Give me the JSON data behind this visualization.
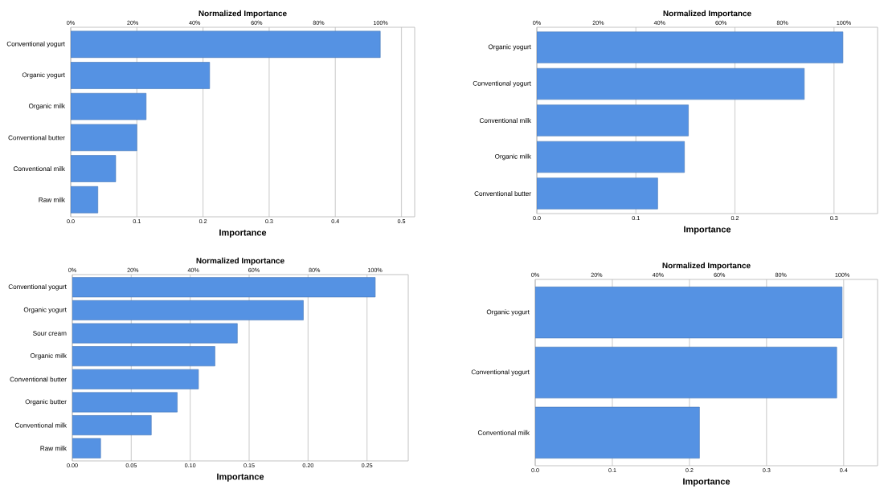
{
  "chart_data": [
    {
      "type": "bar",
      "orientation": "horizontal",
      "color": "#5592e3",
      "grid": "x",
      "xlabel": "Importance",
      "x2label": "Normalized Importance",
      "categories": [
        "Conventional yogurt",
        "Organic yogurt",
        "Organic milk",
        "Conventional butter",
        "Conventional milk",
        "Raw milk"
      ],
      "values": [
        0.468,
        0.21,
        0.114,
        0.1,
        0.068,
        0.041
      ],
      "xlim": [
        0,
        0.52
      ],
      "xticks": [
        {
          "value": 0,
          "label": "0.0"
        },
        0.1,
        0.2,
        0.3,
        0.4,
        0.5
      ],
      "x2lim": [
        0,
        111
      ],
      "x2ticks": [
        {
          "value": 0,
          "label": "0%"
        },
        {
          "value": 20,
          "label": "20%"
        },
        {
          "value": 40,
          "label": "40%"
        },
        {
          "value": 60,
          "label": "60%"
        },
        {
          "value": 80,
          "label": "80%"
        },
        {
          "value": 100,
          "label": "100%"
        }
      ]
    },
    {
      "type": "bar",
      "orientation": "horizontal",
      "color": "#5592e3",
      "grid": "x",
      "xlabel": "Importance",
      "x2label": "Normalized Importance",
      "categories": [
        "Organic yogurt",
        "Conventional yogurt",
        "Conventional milk",
        "Organic milk",
        "Conventional butter"
      ],
      "values": [
        0.309,
        0.27,
        0.153,
        0.149,
        0.122
      ],
      "xlim": [
        0,
        0.344
      ],
      "xticks": [
        {
          "value": 0,
          "label": "0.0"
        },
        0.1,
        0.2,
        0.3
      ],
      "x2lim": [
        0,
        111
      ],
      "x2ticks": [
        {
          "value": 0,
          "label": "0%"
        },
        {
          "value": 20,
          "label": "20%"
        },
        {
          "value": 40,
          "label": "40%"
        },
        {
          "value": 60,
          "label": "60%"
        },
        {
          "value": 80,
          "label": "80%"
        },
        {
          "value": 100,
          "label": "100%"
        }
      ]
    },
    {
      "type": "bar",
      "orientation": "horizontal",
      "color": "#5592e3",
      "grid": "x",
      "xlabel": "Importance",
      "x2label": "Normalized Importance",
      "categories": [
        "Conventional yogurt",
        "Organic yogurt",
        "Sour cream",
        "Organic milk",
        "Conventional butter",
        "Organic butter",
        "Conventional milk",
        "Raw milk"
      ],
      "values": [
        0.257,
        0.196,
        0.14,
        0.121,
        0.107,
        0.089,
        0.067,
        0.024
      ],
      "xlim": [
        0,
        0.285
      ],
      "xticks": [
        {
          "value": 0,
          "label": "0.00"
        },
        {
          "value": 0.05,
          "label": "0.05"
        },
        {
          "value": 0.1,
          "label": "0.10"
        },
        {
          "value": 0.15,
          "label": "0.15"
        },
        {
          "value": 0.2,
          "label": "0.20"
        },
        {
          "value": 0.25,
          "label": "0.25"
        }
      ],
      "x2lim": [
        0,
        111
      ],
      "x2ticks": [
        {
          "value": 0,
          "label": "0%"
        },
        {
          "value": 20,
          "label": "20%"
        },
        {
          "value": 40,
          "label": "40%"
        },
        {
          "value": 60,
          "label": "60%"
        },
        {
          "value": 80,
          "label": "80%"
        },
        {
          "value": 100,
          "label": "100%"
        }
      ]
    },
    {
      "type": "bar",
      "orientation": "horizontal",
      "color": "#5592e3",
      "grid": "x",
      "xlabel": "Importance",
      "x2label": "Normalized Importance",
      "categories": [
        "Organic yogurt",
        "Conventional yogurt",
        "Conventional milk"
      ],
      "values": [
        0.398,
        0.391,
        0.213
      ],
      "xlim": [
        0,
        0.444
      ],
      "xticks": [
        {
          "value": 0,
          "label": "0.0"
        },
        0.1,
        0.2,
        0.3,
        0.4
      ],
      "x2lim": [
        0,
        111.5
      ],
      "x2ticks": [
        {
          "value": 0,
          "label": "0%"
        },
        {
          "value": 20,
          "label": "20%"
        },
        {
          "value": 40,
          "label": "40%"
        },
        {
          "value": 60,
          "label": "60%"
        },
        {
          "value": 80,
          "label": "80%"
        },
        {
          "value": 100,
          "label": "100%"
        }
      ]
    }
  ]
}
